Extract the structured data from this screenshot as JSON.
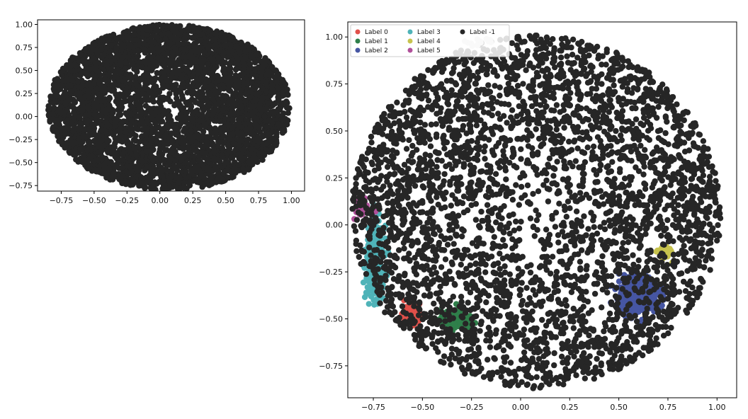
{
  "chart_data": [
    {
      "type": "scatter",
      "title": "",
      "xlabel": "",
      "ylabel": "",
      "xlim": [
        -0.93,
        1.1
      ],
      "ylim": [
        -0.81,
        1.05
      ],
      "x_ticks": [
        -0.75,
        -0.5,
        -0.25,
        0.0,
        0.25,
        0.5,
        0.75,
        1.0
      ],
      "x_tick_labels": [
        "−0.75",
        "−0.50",
        "−0.25",
        "0.00",
        "0.25",
        "0.50",
        "0.75",
        "1.00"
      ],
      "y_ticks": [
        1.0,
        0.75,
        0.5,
        0.25,
        0.0,
        -0.25,
        -0.5,
        -0.75
      ],
      "y_tick_labels": [
        "1.00",
        "0.75",
        "0.50",
        "0.25",
        "0.00",
        "−0.25",
        "−0.50",
        "−0.75"
      ],
      "grid": false,
      "legend": null,
      "series": [
        {
          "color": "#262626",
          "distribution": {
            "shape": "ellipse",
            "center": [
              0.07,
              0.1
            ],
            "radius": [
              0.92,
              0.9
            ],
            "approx_points": 4000
          }
        }
      ]
    },
    {
      "type": "scatter",
      "title": "",
      "xlabel": "",
      "ylabel": "",
      "xlim": [
        -0.88,
        1.1
      ],
      "ylim": [
        -0.92,
        1.08
      ],
      "x_ticks": [
        -0.75,
        -0.5,
        -0.25,
        0.0,
        0.25,
        0.5,
        0.75,
        1.0
      ],
      "x_tick_labels": [
        "−0.75",
        "−0.50",
        "−0.25",
        "0.00",
        "0.25",
        "0.50",
        "0.75",
        "1.00"
      ],
      "y_ticks": [
        1.0,
        0.75,
        0.5,
        0.25,
        0.0,
        -0.25,
        -0.5,
        -0.75
      ],
      "y_tick_labels": [
        "1.00",
        "0.75",
        "0.50",
        "0.25",
        "0.00",
        "−0.25",
        "−0.50",
        "−0.75"
      ],
      "grid": false,
      "legend": {
        "placement": "top-left",
        "columns": 3
      },
      "series": [
        {
          "name": "Label 0",
          "color": "#e0504a",
          "cluster": {
            "center": [
              -0.55,
              -0.48
            ],
            "spread": [
              0.04,
              0.04
            ],
            "approx_points": 160
          }
        },
        {
          "name": "Label 1",
          "color": "#2f7f4a",
          "cluster": {
            "center": [
              -0.34,
              -0.5
            ],
            "spread": [
              0.06,
              0.04
            ],
            "approx_points": 220
          }
        },
        {
          "name": "Label 2",
          "color": "#4656a3",
          "cluster": {
            "center": [
              0.6,
              -0.37
            ],
            "spread": [
              0.09,
              0.09
            ],
            "approx_points": 420
          }
        },
        {
          "name": "Label 3",
          "color": "#4fb3b8",
          "cluster": {
            "center": [
              -0.74,
              -0.2
            ],
            "spread": [
              0.04,
              0.17
            ],
            "approx_points": 380
          }
        },
        {
          "name": "Label 4",
          "color": "#c7c34e",
          "cluster": {
            "center": [
              0.73,
              -0.15
            ],
            "spread": [
              0.03,
              0.03
            ],
            "approx_points": 70
          }
        },
        {
          "name": "Label 5",
          "color": "#b0509a",
          "cluster": {
            "center": [
              -0.81,
              0.09
            ],
            "spread": [
              0.03,
              0.04
            ],
            "approx_points": 60
          }
        },
        {
          "name": "Label -1",
          "color": "#262626",
          "distribution": {
            "shape": "disk",
            "center": [
              0.08,
              0.07
            ],
            "radius": 0.94,
            "approx_points": 3800
          }
        }
      ],
      "annotations": [
        {
          "color": "#d3d3d3",
          "note": "small light grey group near the top of the cloud",
          "center": [
            -0.22,
            0.97
          ]
        }
      ]
    }
  ]
}
